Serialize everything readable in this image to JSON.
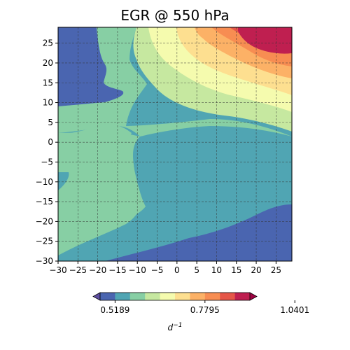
{
  "chart_data": {
    "type": "contourf",
    "title": "EGR @ 550 hPa",
    "xlabel": "",
    "ylabel": "",
    "xlim": [
      -30,
      29
    ],
    "ylim": [
      -30,
      29
    ],
    "x_ticks": [
      -30,
      -25,
      -20,
      -15,
      -10,
      -5,
      0,
      5,
      10,
      15,
      20,
      25
    ],
    "y_ticks": [
      -30,
      -25,
      -20,
      -15,
      -10,
      -5,
      0,
      5,
      10,
      15,
      20,
      25
    ],
    "x_tick_labels": [
      "−30",
      "−25",
      "−20",
      "−15",
      "−10",
      "−5",
      "0",
      "5",
      "10",
      "15",
      "20",
      "25"
    ],
    "y_tick_labels": [
      "−30",
      "−25",
      "−20",
      "−15",
      "−10",
      "−5",
      "0",
      "5",
      "10",
      "15",
      "20",
      "25"
    ],
    "grid": true,
    "colormap": "Spectral_r",
    "levels": [
      0.4756,
      0.5189,
      0.5622,
      0.6055,
      0.6491,
      0.6926,
      0.7362,
      0.7795,
      0.8228,
      0.8661,
      0.9095,
      0.953,
      0.9966,
      1.0401,
      1.0834
    ],
    "level_colors": [
      "#5e4fa2",
      "#4461b0",
      "#52a3b3",
      "#84ceaa",
      "#c6e9a0",
      "#f3f9ac",
      "#fbe391",
      "#fdb365",
      "#f88d52",
      "#e65848",
      "#c42b51",
      "#9e0142",
      "#9e0142",
      "#9e0142"
    ],
    "colorbar": {
      "orientation": "horizontal",
      "extend": "both",
      "tick_values": [
        0.5189,
        0.7795,
        1.0401
      ],
      "tick_labels": [
        "0.5189",
        "0.7795",
        "1.0401"
      ],
      "label": "d",
      "label_superscript": "−1"
    },
    "field_note": "low values (blue) at left-upper and bottom-right; high values (red) at top-right corner; mid values (green/teal) across center",
    "colors": {
      "band0": "#4a65b0",
      "band1": "#50a5b3",
      "band2": "#87cfa4",
      "band3": "#c6e8a0",
      "band4": "#f5fbae",
      "band5": "#fddf90",
      "band6": "#fcb166",
      "band7": "#f78d52",
      "band8": "#e55648",
      "band9": "#bf1f50"
    }
  }
}
